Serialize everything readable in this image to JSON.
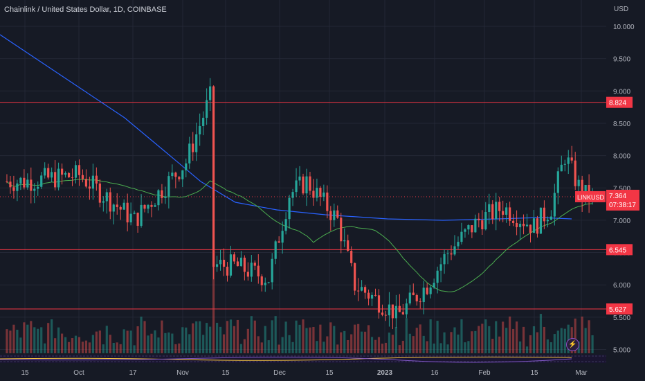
{
  "header": {
    "symbol_title": "Chainlink / United States Dollar, 1D, COINBASE",
    "currency": "USD"
  },
  "price_axis": {
    "ticks": [
      "10.000",
      "9.500",
      "9.000",
      "8.500",
      "8.000",
      "7.500",
      "7.000",
      "6.500",
      "6.000",
      "5.500",
      "5.000"
    ]
  },
  "time_axis": {
    "labels": [
      "15",
      "Oct",
      "17",
      "Nov",
      "15",
      "Dec",
      "15",
      "2023",
      "16",
      "Feb",
      "15",
      "Mar"
    ]
  },
  "markers": {
    "lines": [
      {
        "label": "8.824",
        "value": 8.824
      },
      {
        "label": "6.545",
        "value": 6.545
      },
      {
        "label": "5.627",
        "value": 5.627
      }
    ],
    "last": {
      "symbol": "LINKUSD",
      "price": "7.364",
      "countdown": "07:38:17",
      "value": 7.364
    }
  },
  "colors": {
    "background": "#161a25",
    "up": "#26a69a",
    "down": "#ef5350",
    "ma_blue": "#2962ff",
    "ma_green": "#4caf50",
    "level_line": "#f23645"
  },
  "icons": {
    "alert": "lightning-icon"
  },
  "chart_data": {
    "type": "candlestick",
    "title": "Chainlink / United States Dollar, 1D, COINBASE",
    "y_unit": "USD",
    "ylim": [
      4.88,
      10.42
    ],
    "x_range": [
      "2022-09-08",
      "2023-03-03"
    ],
    "grid": true,
    "horizontal_levels": [
      8.824,
      6.545,
      5.627
    ],
    "last_price": 7.364,
    "sample_closes": [
      {
        "date": "2022-09-15",
        "close": 7.6
      },
      {
        "date": "2022-10-01",
        "close": 7.7
      },
      {
        "date": "2022-10-17",
        "close": 7.0
      },
      {
        "date": "2022-11-01",
        "close": 7.9
      },
      {
        "date": "2022-11-08",
        "close": 8.9
      },
      {
        "date": "2022-11-09",
        "close": 6.3
      },
      {
        "date": "2022-11-15",
        "close": 6.3
      },
      {
        "date": "2022-11-25",
        "close": 6.1
      },
      {
        "date": "2022-12-01",
        "close": 7.4
      },
      {
        "date": "2022-12-06",
        "close": 7.6
      },
      {
        "date": "2022-12-15",
        "close": 7.0
      },
      {
        "date": "2022-12-20",
        "close": 6.0
      },
      {
        "date": "2022-12-31",
        "close": 5.6
      },
      {
        "date": "2023-01-01",
        "close": 5.5
      },
      {
        "date": "2023-01-10",
        "close": 6.0
      },
      {
        "date": "2023-01-16",
        "close": 6.5
      },
      {
        "date": "2023-01-25",
        "close": 7.0
      },
      {
        "date": "2023-02-01",
        "close": 7.2
      },
      {
        "date": "2023-02-10",
        "close": 6.9
      },
      {
        "date": "2023-02-15",
        "close": 7.2
      },
      {
        "date": "2023-02-19",
        "close": 8.0
      },
      {
        "date": "2023-02-24",
        "close": 7.4
      },
      {
        "date": "2023-02-27",
        "close": 7.364
      }
    ]
  }
}
